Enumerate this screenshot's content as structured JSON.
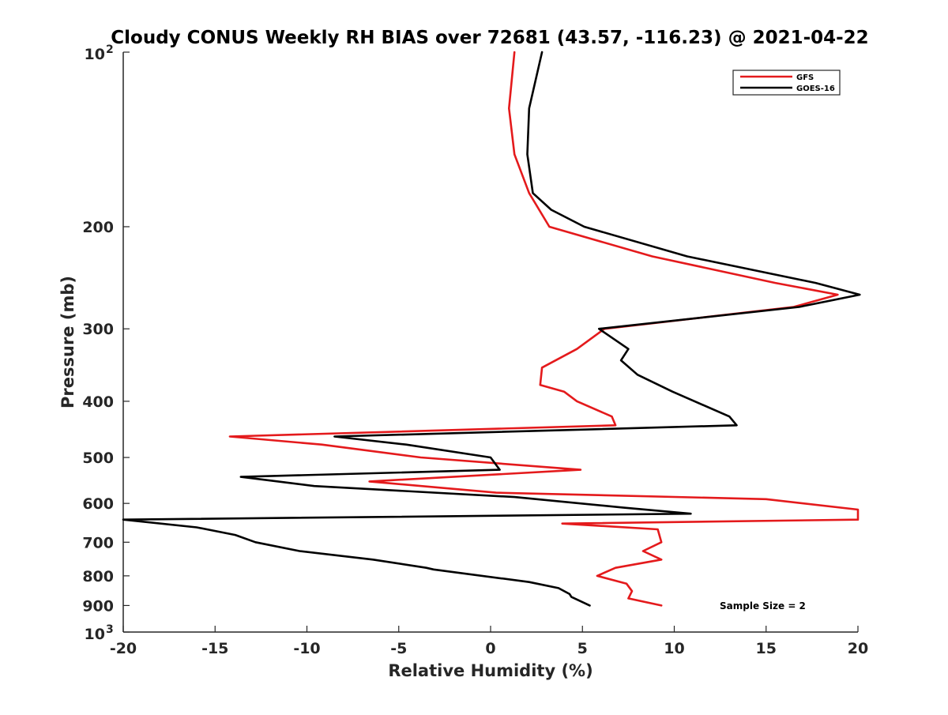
{
  "chart_data": {
    "type": "line",
    "title": "Cloudy CONUS Weekly RH BIAS over 72681 (43.57, -116.23) @ 2021-04-22",
    "xlabel": "Relative Humidity (%)",
    "ylabel": "Pressure (mb)",
    "xlim": [
      -20,
      20
    ],
    "ylim": [
      100,
      1000
    ],
    "y_scale": "log",
    "y_reversed": true,
    "grid": false,
    "legend_placement": "top-right",
    "annotation": "Sample Size = 2",
    "x_ticks": [
      "-20",
      "-15",
      "-10",
      "-5",
      "0",
      "5",
      "10",
      "15",
      "20"
    ],
    "y_ticks": [
      {
        "value": 100,
        "base": "10",
        "exp": "2"
      },
      {
        "value": 200,
        "label": "200"
      },
      {
        "value": 300,
        "label": "300"
      },
      {
        "value": 400,
        "label": "400"
      },
      {
        "value": 500,
        "label": "500"
      },
      {
        "value": 600,
        "label": "600"
      },
      {
        "value": 700,
        "label": "700"
      },
      {
        "value": 800,
        "label": "800"
      },
      {
        "value": 900,
        "label": "900"
      },
      {
        "value": 1000,
        "base": "10",
        "exp": "3"
      }
    ],
    "series": [
      {
        "name": "GFS",
        "color": "#e41a1c",
        "points": [
          [
            1.3,
            100
          ],
          [
            1.0,
            125
          ],
          [
            1.3,
            150
          ],
          [
            2.1,
            175
          ],
          [
            3.2,
            200
          ],
          [
            8.8,
            225
          ],
          [
            15.5,
            250
          ],
          [
            18.9,
            262
          ],
          [
            16.5,
            275
          ],
          [
            6.2,
            300
          ],
          [
            4.7,
            325
          ],
          [
            2.8,
            350
          ],
          [
            2.7,
            375
          ],
          [
            4.0,
            385
          ],
          [
            4.7,
            400
          ],
          [
            6.6,
            425
          ],
          [
            6.8,
            440
          ],
          [
            -14.2,
            460
          ],
          [
            -9.2,
            475
          ],
          [
            -3.8,
            500
          ],
          [
            4.9,
            525
          ],
          [
            -6.6,
            550
          ],
          [
            0.3,
            575
          ],
          [
            15.0,
            590
          ],
          [
            20.0,
            615
          ],
          [
            20.0,
            640
          ],
          [
            3.9,
            650
          ],
          [
            9.1,
            665
          ],
          [
            9.3,
            700
          ],
          [
            8.3,
            725
          ],
          [
            9.3,
            750
          ],
          [
            6.8,
            775
          ],
          [
            5.8,
            800
          ],
          [
            7.4,
            825
          ],
          [
            7.7,
            850
          ],
          [
            7.5,
            875
          ],
          [
            9.3,
            900
          ]
        ]
      },
      {
        "name": "GOES-16",
        "color": "#000000",
        "points": [
          [
            2.8,
            100
          ],
          [
            2.1,
            125
          ],
          [
            2.0,
            150
          ],
          [
            2.3,
            175
          ],
          [
            3.3,
            187
          ],
          [
            5.1,
            200
          ],
          [
            10.7,
            225
          ],
          [
            17.7,
            250
          ],
          [
            20.1,
            262
          ],
          [
            16.8,
            275
          ],
          [
            5.9,
            300
          ],
          [
            7.5,
            325
          ],
          [
            7.1,
            340
          ],
          [
            8.0,
            360
          ],
          [
            9.9,
            385
          ],
          [
            13.0,
            425
          ],
          [
            13.4,
            440
          ],
          [
            -8.5,
            460
          ],
          [
            -4.6,
            475
          ],
          [
            0.0,
            500
          ],
          [
            0.5,
            525
          ],
          [
            -13.6,
            540
          ],
          [
            -9.6,
            560
          ],
          [
            1.3,
            585
          ],
          [
            7.2,
            610
          ],
          [
            10.9,
            625
          ],
          [
            -20.0,
            640
          ],
          [
            -16.0,
            660
          ],
          [
            -13.9,
            680
          ],
          [
            -12.8,
            700
          ],
          [
            -10.4,
            725
          ],
          [
            -6.4,
            750
          ],
          [
            -3.5,
            775
          ],
          [
            -3.1,
            780
          ],
          [
            2.1,
            820
          ],
          [
            3.7,
            840
          ],
          [
            4.3,
            860
          ],
          [
            4.4,
            870
          ],
          [
            5.4,
            900
          ]
        ]
      }
    ]
  }
}
